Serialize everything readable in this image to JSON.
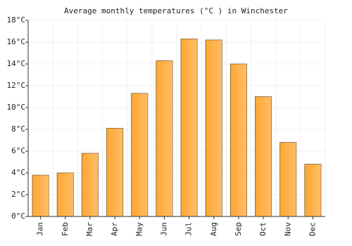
{
  "chart_data": {
    "type": "bar",
    "title": "Average monthly temperatures (°C ) in Winchester",
    "categories": [
      "Jan",
      "Feb",
      "Mar",
      "Apr",
      "May",
      "Jun",
      "Jul",
      "Aug",
      "Sep",
      "Oct",
      "Nov",
      "Dec"
    ],
    "values": [
      3.8,
      4.0,
      5.8,
      8.1,
      11.3,
      14.3,
      16.3,
      16.2,
      14.0,
      11.0,
      6.8,
      4.8
    ],
    "color": "#ffa733",
    "ylim": [
      0,
      18
    ],
    "yticks": [
      {
        "value": 0,
        "label": "0°C"
      },
      {
        "value": 2,
        "label": "2°C"
      },
      {
        "value": 4,
        "label": "4°C"
      },
      {
        "value": 6,
        "label": "6°C"
      },
      {
        "value": 8,
        "label": "8°C"
      },
      {
        "value": 10,
        "label": "10°C"
      },
      {
        "value": 12,
        "label": "12°C"
      },
      {
        "value": 14,
        "label": "14°C"
      },
      {
        "value": 16,
        "label": "16°C"
      },
      {
        "value": 18,
        "label": "18°C"
      }
    ],
    "grid": true
  }
}
